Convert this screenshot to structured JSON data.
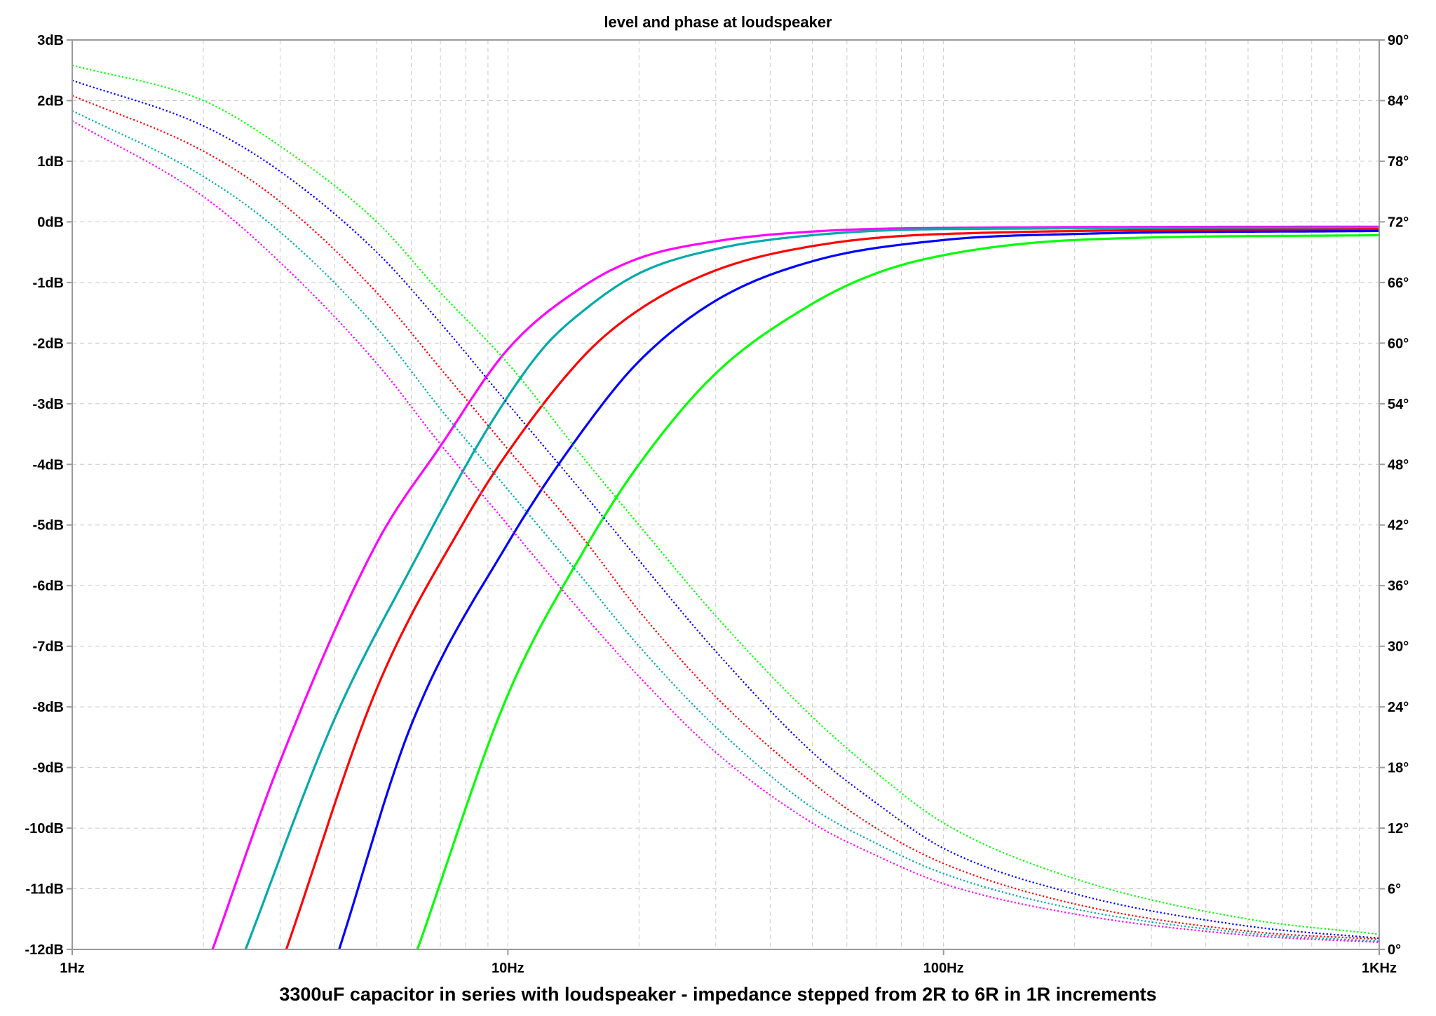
{
  "chart_data": {
    "type": "line",
    "title": "level and phase at loudspeaker",
    "xlabel": "3300uF capacitor in series with loudspeaker - impedance stepped from 2R to 6R in 1R increments",
    "x_scale": "log",
    "xlim": [
      1,
      1000
    ],
    "x_ticks": [
      {
        "value": 1,
        "label": "1Hz"
      },
      {
        "value": 10,
        "label": "10Hz"
      },
      {
        "value": 100,
        "label": "100Hz"
      },
      {
        "value": 1000,
        "label": "1KHz"
      }
    ],
    "y_left": {
      "ylim": [
        -12,
        3
      ],
      "ticks": [
        {
          "value": 3,
          "label": "3dB"
        },
        {
          "value": 2,
          "label": "2dB"
        },
        {
          "value": 1,
          "label": "1dB"
        },
        {
          "value": 0,
          "label": "0dB"
        },
        {
          "value": -1,
          "label": "-1dB"
        },
        {
          "value": -2,
          "label": "-2dB"
        },
        {
          "value": -3,
          "label": "-3dB"
        },
        {
          "value": -4,
          "label": "-4dB"
        },
        {
          "value": -5,
          "label": "-5dB"
        },
        {
          "value": -6,
          "label": "-6dB"
        },
        {
          "value": -7,
          "label": "-7dB"
        },
        {
          "value": -8,
          "label": "-8dB"
        },
        {
          "value": -9,
          "label": "-9dB"
        },
        {
          "value": -10,
          "label": "-10dB"
        },
        {
          "value": -11,
          "label": "-11dB"
        },
        {
          "value": -12,
          "label": "-12dB"
        }
      ]
    },
    "y_right": {
      "ylim": [
        0,
        90
      ],
      "ticks": [
        {
          "value": 90,
          "label": "90°"
        },
        {
          "value": 84,
          "label": "84°"
        },
        {
          "value": 78,
          "label": "78°"
        },
        {
          "value": 72,
          "label": "72°"
        },
        {
          "value": 66,
          "label": "66°"
        },
        {
          "value": 60,
          "label": "60°"
        },
        {
          "value": 54,
          "label": "54°"
        },
        {
          "value": 48,
          "label": "48°"
        },
        {
          "value": 42,
          "label": "42°"
        },
        {
          "value": 36,
          "label": "36°"
        },
        {
          "value": 30,
          "label": "30°"
        },
        {
          "value": 24,
          "label": "24°"
        },
        {
          "value": 18,
          "label": "18°"
        },
        {
          "value": 12,
          "label": "12°"
        },
        {
          "value": 6,
          "label": "6°"
        },
        {
          "value": 0,
          "label": "0°"
        }
      ]
    },
    "grid": true,
    "series": [
      {
        "color": "#ff00ff",
        "axis": "left",
        "style": "solid",
        "points": [
          [
            2.1,
            -12
          ],
          [
            3,
            -8.9
          ],
          [
            5,
            -5.3
          ],
          [
            7,
            -3.7
          ],
          [
            10,
            -2.1
          ],
          [
            15,
            -1.05
          ],
          [
            20,
            -0.6
          ],
          [
            30,
            -0.32
          ],
          [
            50,
            -0.16
          ],
          [
            100,
            -0.1
          ],
          [
            1000,
            -0.08
          ]
        ]
      },
      {
        "color": "#00aaaa",
        "axis": "left",
        "style": "solid",
        "points": [
          [
            2.5,
            -12
          ],
          [
            4,
            -8.2
          ],
          [
            6,
            -5.7
          ],
          [
            9,
            -3.4
          ],
          [
            12,
            -2.1
          ],
          [
            15,
            -1.45
          ],
          [
            20,
            -0.85
          ],
          [
            30,
            -0.45
          ],
          [
            50,
            -0.22
          ],
          [
            100,
            -0.12
          ],
          [
            1000,
            -0.1
          ]
        ]
      },
      {
        "color": "#ff0000",
        "axis": "left",
        "style": "solid",
        "points": [
          [
            3.1,
            -12
          ],
          [
            5,
            -7.7
          ],
          [
            8,
            -4.9
          ],
          [
            10,
            -3.8
          ],
          [
            15,
            -2.2
          ],
          [
            20,
            -1.45
          ],
          [
            30,
            -0.8
          ],
          [
            50,
            -0.4
          ],
          [
            100,
            -0.2
          ],
          [
            1000,
            -0.12
          ]
        ]
      },
      {
        "color": "#0000ff",
        "axis": "left",
        "style": "solid",
        "points": [
          [
            4.1,
            -12
          ],
          [
            6,
            -8.3
          ],
          [
            10,
            -5.3
          ],
          [
            15,
            -3.4
          ],
          [
            20,
            -2.3
          ],
          [
            30,
            -1.3
          ],
          [
            50,
            -0.65
          ],
          [
            100,
            -0.3
          ],
          [
            200,
            -0.2
          ],
          [
            1000,
            -0.15
          ]
        ]
      },
      {
        "color": "#00ff00",
        "axis": "left",
        "style": "solid",
        "points": [
          [
            6.2,
            -12
          ],
          [
            10,
            -7.8
          ],
          [
            15,
            -5.4
          ],
          [
            20,
            -4
          ],
          [
            30,
            -2.5
          ],
          [
            50,
            -1.35
          ],
          [
            70,
            -0.85
          ],
          [
            100,
            -0.55
          ],
          [
            200,
            -0.3
          ],
          [
            1000,
            -0.22
          ]
        ]
      },
      {
        "color": "#00ff00",
        "axis": "right",
        "style": "dotted",
        "points": [
          [
            1,
            87.5
          ],
          [
            2,
            84
          ],
          [
            3,
            79.5
          ],
          [
            5,
            72
          ],
          [
            7,
            65
          ],
          [
            10,
            58
          ],
          [
            15,
            48.5
          ],
          [
            20,
            42
          ],
          [
            30,
            33
          ],
          [
            50,
            23
          ],
          [
            70,
            17.5
          ],
          [
            100,
            12.5
          ],
          [
            200,
            7
          ],
          [
            500,
            3
          ],
          [
            1000,
            1.5
          ]
        ]
      },
      {
        "color": "#0000ff",
        "axis": "right",
        "style": "dotted",
        "points": [
          [
            1,
            86
          ],
          [
            2,
            81.5
          ],
          [
            3,
            77
          ],
          [
            5,
            69
          ],
          [
            7,
            62
          ],
          [
            10,
            54
          ],
          [
            15,
            45
          ],
          [
            20,
            38.5
          ],
          [
            30,
            29.5
          ],
          [
            50,
            19.5
          ],
          [
            70,
            14.5
          ],
          [
            100,
            10
          ],
          [
            200,
            5.5
          ],
          [
            500,
            2.3
          ],
          [
            1000,
            1.1
          ]
        ]
      },
      {
        "color": "#ff0000",
        "axis": "right",
        "style": "dotted",
        "points": [
          [
            1,
            84.5
          ],
          [
            2,
            79
          ],
          [
            3,
            74
          ],
          [
            5,
            65
          ],
          [
            7,
            57.5
          ],
          [
            10,
            49.5
          ],
          [
            15,
            40.5
          ],
          [
            20,
            33.5
          ],
          [
            30,
            25
          ],
          [
            50,
            16.5
          ],
          [
            70,
            12
          ],
          [
            100,
            8.5
          ],
          [
            200,
            4.5
          ],
          [
            500,
            1.8
          ],
          [
            1000,
            1
          ]
        ]
      },
      {
        "color": "#00aaaa",
        "axis": "right",
        "style": "dotted",
        "points": [
          [
            1,
            83
          ],
          [
            2,
            76.5
          ],
          [
            3,
            71
          ],
          [
            5,
            61.5
          ],
          [
            7,
            53.5
          ],
          [
            10,
            45.5
          ],
          [
            15,
            36.5
          ],
          [
            20,
            30
          ],
          [
            30,
            22
          ],
          [
            50,
            14
          ],
          [
            70,
            10.5
          ],
          [
            100,
            7.5
          ],
          [
            200,
            4
          ],
          [
            500,
            1.6
          ],
          [
            1000,
            0.8
          ]
        ]
      },
      {
        "color": "#ff00ff",
        "axis": "right",
        "style": "dotted",
        "points": [
          [
            1,
            82
          ],
          [
            2,
            74.5
          ],
          [
            3,
            68
          ],
          [
            5,
            58
          ],
          [
            7,
            50
          ],
          [
            10,
            42
          ],
          [
            15,
            33
          ],
          [
            20,
            27
          ],
          [
            30,
            19.5
          ],
          [
            50,
            12.5
          ],
          [
            70,
            9.3
          ],
          [
            100,
            6.5
          ],
          [
            200,
            3.5
          ],
          [
            500,
            1.4
          ],
          [
            1000,
            0.7
          ]
        ]
      }
    ]
  }
}
